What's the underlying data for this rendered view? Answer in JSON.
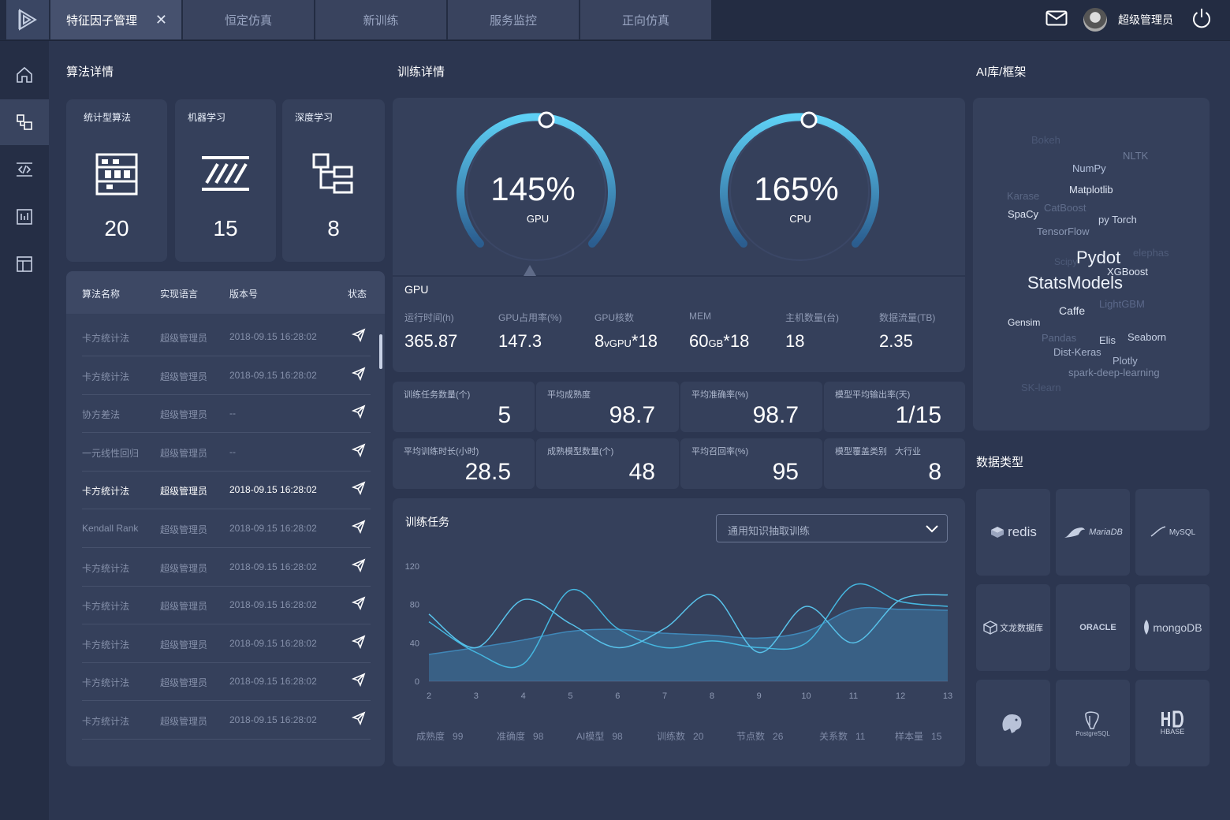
{
  "tabs": [
    {
      "label": "特征因子管理",
      "active": true
    },
    {
      "label": "恒定仿真",
      "active": false
    },
    {
      "label": "新训练",
      "active": false
    },
    {
      "label": "服务监控",
      "active": false
    },
    {
      "label": "正向仿真",
      "active": false
    }
  ],
  "close_glyph": "✕",
  "user": {
    "name": "超级管理员",
    "icons": [
      "mail-icon",
      "avatar",
      "power-icon"
    ]
  },
  "sidebar_icons": [
    "home-icon",
    "factor-icon",
    "code-icon",
    "chart-board-icon",
    "layout-icon"
  ],
  "algo": {
    "title": "算法详情",
    "categories": [
      {
        "label": "统计型算法",
        "count": "20",
        "icon": "abacus-icon"
      },
      {
        "label": "机器学习",
        "count": "15",
        "icon": "ml-icon"
      },
      {
        "label": "深度学习",
        "count": "8",
        "icon": "tree-icon"
      }
    ],
    "columns": [
      "算法名称",
      "实现语言",
      "版本号",
      "状态"
    ],
    "rows": [
      {
        "name": "卡方统计法",
        "lang": "超级管理员",
        "version": "2018-09.15 16:28:02",
        "highlight": false
      },
      {
        "name": "卡方统计法",
        "lang": "超级管理员",
        "version": "2018-09.15 16:28:02",
        "highlight": false
      },
      {
        "name": "协方差法",
        "lang": "超级管理员",
        "version": "--",
        "highlight": false
      },
      {
        "name": "一元线性回归",
        "lang": "超级管理员",
        "version": "--",
        "highlight": false
      },
      {
        "name": "卡方统计法",
        "lang": "超级管理员",
        "version": "2018-09.15 16:28:02",
        "highlight": true
      },
      {
        "name": "Kendall Rank",
        "lang": "超级管理员",
        "version": "2018-09.15 16:28:02",
        "highlight": false
      },
      {
        "name": "卡方统计法",
        "lang": "超级管理员",
        "version": "2018-09.15 16:28:02",
        "highlight": false
      },
      {
        "name": "卡方统计法",
        "lang": "超级管理员",
        "version": "2018-09.15 16:28:02",
        "highlight": false
      },
      {
        "name": "卡方统计法",
        "lang": "超级管理员",
        "version": "2018-09.15 16:28:02",
        "highlight": false
      },
      {
        "name": "卡方统计法",
        "lang": "超级管理员",
        "version": "2018-09.15 16:28:02",
        "highlight": false
      },
      {
        "name": "卡方统计法",
        "lang": "超级管理员",
        "version": "2018-09.15 16:28:02",
        "highlight": false
      }
    ]
  },
  "training": {
    "title": "训练详情",
    "gauges": [
      {
        "value": "145%",
        "label": "GPU"
      },
      {
        "value": "165%",
        "label": "CPU"
      }
    ],
    "section_label": "GPU",
    "stats": [
      {
        "label": "运行时间(h)",
        "value": "365.87",
        "unit": "",
        "suffix": ""
      },
      {
        "label": "GPU占用率(%)",
        "value": "147.3",
        "unit": "",
        "suffix": ""
      },
      {
        "label": "GPU核数",
        "value": "8",
        "unit": "vGPU",
        "suffix": "*18"
      },
      {
        "label": "MEM",
        "value": "60",
        "unit": "GB",
        "suffix": "*18"
      },
      {
        "label": "主机数量(台)",
        "value": "18",
        "unit": "",
        "suffix": ""
      },
      {
        "label": "数据流量(TB)",
        "value": "2.35",
        "unit": "",
        "suffix": ""
      }
    ],
    "metrics": [
      {
        "label": "训练任务数量(个)",
        "value": "5"
      },
      {
        "label": "平均成熟度",
        "value": "98.7"
      },
      {
        "label": "平均准确率(%)",
        "value": "98.7"
      },
      {
        "label": "模型平均输出率(天)",
        "value": "1/15"
      },
      {
        "label": "平均训练时长(小时)",
        "value": "28.5"
      },
      {
        "label": "成熟模型数量(个)",
        "value": "48"
      },
      {
        "label": "平均召回率(%)",
        "value": "95"
      },
      {
        "label": "模型覆盖类别",
        "label2": "大行业",
        "value": "8"
      }
    ]
  },
  "tasks": {
    "title": "训练任务",
    "dropdown_value": "通用知识抽取训练",
    "legend": [
      {
        "label": "成熟度",
        "value": "99"
      },
      {
        "label": "准确度",
        "value": "98"
      },
      {
        "label": "AI模型",
        "value": "98"
      },
      {
        "label": "训练数",
        "value": "20"
      },
      {
        "label": "节点数",
        "value": "26"
      },
      {
        "label": "关系数",
        "value": "11"
      },
      {
        "label": "样本量",
        "value": "15"
      }
    ]
  },
  "chart_data": {
    "type": "area",
    "x": [
      2,
      3,
      4,
      5,
      6,
      7,
      8,
      9,
      10,
      11,
      12,
      13
    ],
    "y_ticks": [
      0,
      40,
      80,
      120
    ],
    "ylim": [
      0,
      120
    ],
    "xlim": [
      2,
      13
    ],
    "series": [
      {
        "values": [
          28,
          35,
          43,
          52,
          54,
          50,
          48,
          45,
          52,
          75,
          75,
          74
        ],
        "color": "#3f87b8",
        "filled": true
      },
      {
        "values": [
          62,
          30,
          18,
          95,
          55,
          35,
          42,
          35,
          40,
          100,
          83,
          78
        ],
        "color": "#45b7e0",
        "filled": false
      },
      {
        "values": [
          70,
          35,
          85,
          60,
          35,
          55,
          90,
          30,
          78,
          40,
          85,
          90
        ],
        "color": "#58c2ea",
        "filled": false
      }
    ]
  },
  "ai_lib": {
    "title": "AI库/框架",
    "words": [
      {
        "text": "Bokeh",
        "size": 13,
        "color": "#4b5876"
      },
      {
        "text": "NLTK",
        "size": 13,
        "color": "#6e7b98"
      },
      {
        "text": "NumPy",
        "size": 13,
        "color": "#b4c2dd"
      },
      {
        "text": "Karase",
        "size": 13,
        "color": "#5a6784"
      },
      {
        "text": "Matplotlib",
        "size": 13,
        "color": "#e0e7f4"
      },
      {
        "text": "SpaCy",
        "size": 13,
        "color": "#e0e7f4"
      },
      {
        "text": "CatBoost",
        "size": 13,
        "color": "#5f6c8a"
      },
      {
        "text": "py Torch",
        "size": 13,
        "color": "#c9d3e6"
      },
      {
        "text": "TensorFlow",
        "size": 13,
        "color": "#8b98b4"
      },
      {
        "text": "Scipy",
        "size": 12,
        "color": "#4d5a78"
      },
      {
        "text": "Pydot",
        "size": 22,
        "color": "#eef3fb"
      },
      {
        "text": "elephas",
        "size": 13,
        "color": "#4f5c7a"
      },
      {
        "text": "XGBoost",
        "size": 13,
        "color": "#e0e7f4"
      },
      {
        "text": "StatsModels",
        "size": 22,
        "color": "#eef3fb"
      },
      {
        "text": "Caffe",
        "size": 14,
        "color": "#e0e7f4"
      },
      {
        "text": "LightGBM",
        "size": 13,
        "color": "#5b688a"
      },
      {
        "text": "Gensim",
        "size": 12,
        "color": "#e0e7f4"
      },
      {
        "text": "Pandas",
        "size": 13,
        "color": "#5d6a88"
      },
      {
        "text": "Elis",
        "size": 13,
        "color": "#c9d3e6"
      },
      {
        "text": "Seaborn",
        "size": 13,
        "color": "#c9d3e6"
      },
      {
        "text": "Dist-Keras",
        "size": 13,
        "color": "#a8b4cd"
      },
      {
        "text": "Plotly",
        "size": 13,
        "color": "#a8b4cd"
      },
      {
        "text": "spark-deep-learning",
        "size": 13,
        "color": "#7f8ca8"
      },
      {
        "text": "SK-learn",
        "size": 13,
        "color": "#4b5876"
      }
    ]
  },
  "data_types": {
    "title": "数据类型",
    "tiles": [
      {
        "label": "redis",
        "icon": "redis-icon"
      },
      {
        "label": "MariaDB",
        "icon": "mariadb-icon"
      },
      {
        "label": "MySQL",
        "icon": "mysql-icon"
      },
      {
        "label": "文龙数据库",
        "icon": "wenlong-icon"
      },
      {
        "label": "ORACLE",
        "icon": "oracle-icon"
      },
      {
        "label": "mongoDB",
        "icon": "mongodb-icon"
      },
      {
        "label": "",
        "icon": "elephant-icon"
      },
      {
        "label": "PostgreSQL",
        "icon": "postgresql-icon"
      },
      {
        "label": "HBASE",
        "icon": "hbase-icon"
      }
    ]
  }
}
